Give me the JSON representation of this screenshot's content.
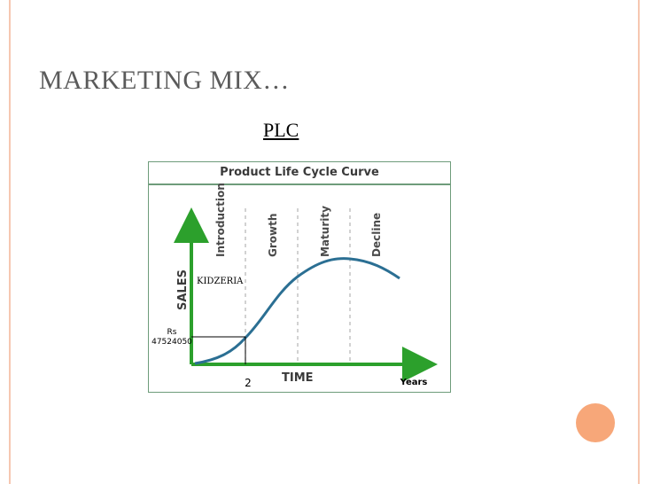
{
  "slide": {
    "title": "MARKETING MIX…",
    "subtitle": "PLC",
    "accent_color": "#f6c7b1",
    "circle_color": "#f7a779"
  },
  "diagram": {
    "header": "Product Life Cycle Curve",
    "stages": [
      "Introduction",
      "Growth",
      "Maturity",
      "Decline"
    ],
    "y_axis_label": "SALES",
    "x_axis_label": "TIME",
    "curve_label": "KIDZERIA",
    "marker_value_unit": "Rs",
    "marker_value": "47524050",
    "marker_x": "2",
    "x_unit": "Years",
    "axis_color": "#2ca02c",
    "curve_color": "#2b6f93"
  }
}
